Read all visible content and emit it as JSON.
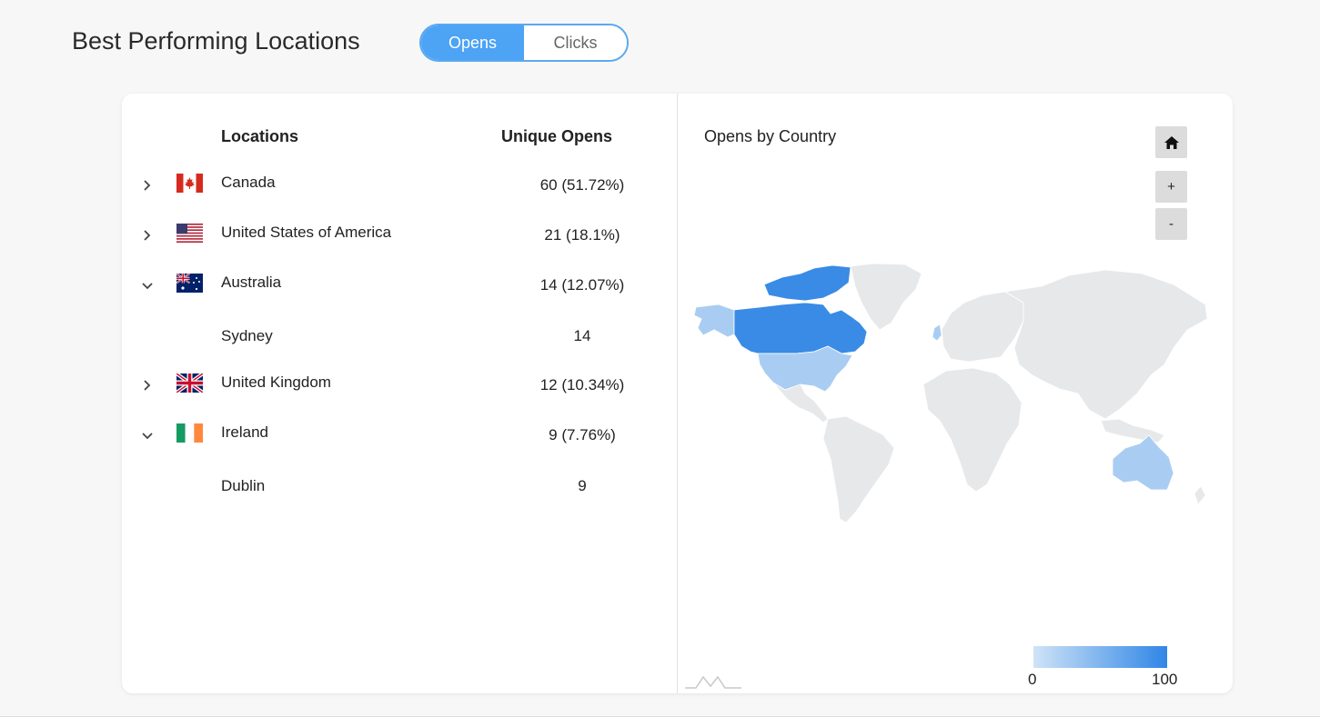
{
  "header": {
    "title": "Best Performing Locations",
    "toggle": {
      "opens_label": "Opens",
      "clicks_label": "Clicks",
      "active": "Opens"
    }
  },
  "table": {
    "col_locations": "Locations",
    "col_unique_opens": "Unique Opens",
    "rows": [
      {
        "name": "Canada",
        "value": "60 (51.72%)",
        "flag": "canada-flag",
        "expanded": false
      },
      {
        "name": "United States of America",
        "value": "21 (18.1%)",
        "flag": "usa-flag",
        "expanded": false
      },
      {
        "name": "Australia",
        "value": "14 (12.07%)",
        "flag": "australia-flag",
        "expanded": true
      },
      {
        "name": "Sydney",
        "value": "14",
        "sub": true
      },
      {
        "name": "United Kingdom",
        "value": "12 (10.34%)",
        "flag": "uk-flag",
        "expanded": false
      },
      {
        "name": "Ireland",
        "value": "9 (7.76%)",
        "flag": "ireland-flag",
        "expanded": true
      },
      {
        "name": "Dublin",
        "value": "9",
        "sub": true
      }
    ]
  },
  "map": {
    "title": "Opens by Country",
    "buttons": {
      "home_icon": "home-icon",
      "zoom_in": "+",
      "zoom_out": "-"
    },
    "legend": {
      "min": "0",
      "max": "100",
      "color_low": "#cfe3f7",
      "color_high": "#2f86e6"
    },
    "colors": {
      "canada": "#3a8be6",
      "usa": "#a9cdf2",
      "alaska": "#a9cdf2",
      "australia": "#a9cdf2",
      "other": "#e6e8ea"
    }
  }
}
